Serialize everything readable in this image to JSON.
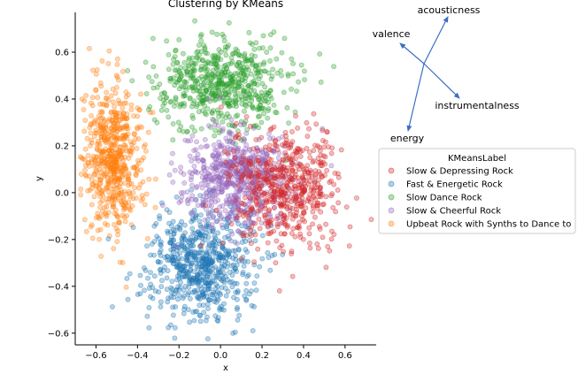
{
  "chart_data": {
    "type": "scatter",
    "title": "Clustering by KMeans",
    "xlabel": "x",
    "ylabel": "y",
    "xlim": [
      -0.7,
      0.75
    ],
    "ylim": [
      -0.65,
      0.77
    ],
    "xticks": [
      -0.6,
      -0.4,
      -0.2,
      0.0,
      0.2,
      0.4,
      0.6
    ],
    "yticks": [
      -0.6,
      -0.4,
      -0.2,
      0.0,
      0.2,
      0.4,
      0.6
    ],
    "xtick_labels": [
      "−0.6",
      "−0.4",
      "−0.2",
      "0.0",
      "0.2",
      "0.4",
      "0.6"
    ],
    "ytick_labels": [
      "−0.6",
      "−0.4",
      "−0.2",
      "0.0",
      "0.2",
      "0.4",
      "0.6"
    ],
    "grid": false,
    "legend": {
      "title": "KMeansLabel",
      "placement": "right"
    },
    "series": [
      {
        "name": "Slow & Depressing Rock",
        "color": "#d62728",
        "cluster": {
          "center": [
            0.32,
            0.02
          ],
          "spread": [
            0.13,
            0.13
          ],
          "count": 550
        }
      },
      {
        "name": "Fast & Energetic Rock",
        "color": "#1f77b4",
        "cluster": {
          "center": [
            -0.09,
            -0.3
          ],
          "spread": [
            0.13,
            0.12
          ],
          "count": 650
        }
      },
      {
        "name": "Slow Dance Rock",
        "color": "#2ca02c",
        "cluster": {
          "center": [
            0.0,
            0.47
          ],
          "spread": [
            0.16,
            0.1
          ],
          "count": 600
        }
      },
      {
        "name": "Slow & Cheerful Rock",
        "color": "#9467bd",
        "cluster": {
          "center": [
            0.08,
            0.07
          ],
          "spread": [
            0.13,
            0.1
          ],
          "count": 650
        }
      },
      {
        "name": "Upbeat Rock with Synths to Dance to",
        "color": "#ff7f0e",
        "cluster": {
          "center": [
            -0.52,
            0.14
          ],
          "spread": [
            0.07,
            0.15
          ],
          "count": 600
        }
      }
    ],
    "annotations": [
      {
        "label": "acousticness",
        "direction": "up-right"
      },
      {
        "label": "valence",
        "direction": "up-left"
      },
      {
        "label": "instrumentalness",
        "direction": "down-right"
      },
      {
        "label": "energy",
        "direction": "down-left"
      }
    ]
  }
}
